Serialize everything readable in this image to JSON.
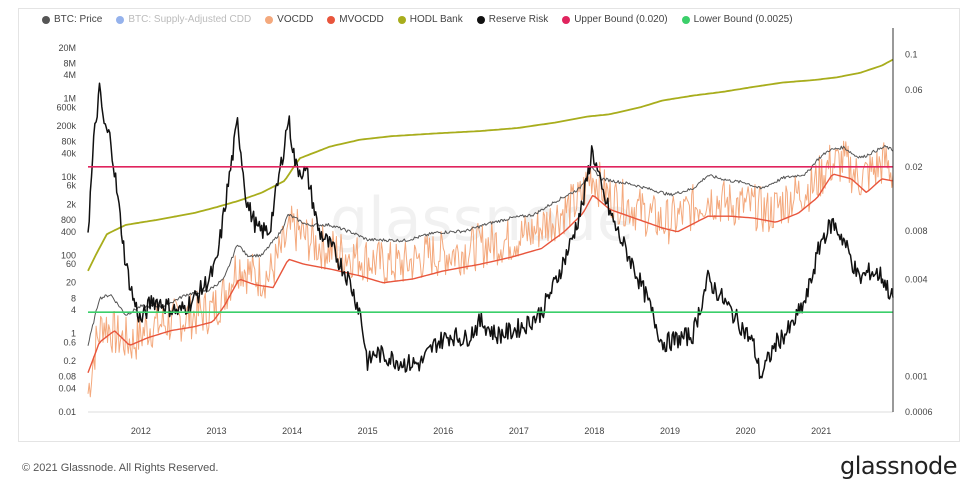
{
  "colors": {
    "price": "#555555",
    "supply_cdd": "#4f7fe0",
    "vocdd": "#f4a97d",
    "mvocdd": "#e8553c",
    "hodl": "#a8ad1c",
    "reserve": "#111111",
    "upper": "#e0245e",
    "lower": "#3bcf6a"
  },
  "legend": [
    {
      "key": "price",
      "label": "BTC: Price",
      "hidden": false
    },
    {
      "key": "supply_cdd",
      "label": "BTC: Supply-Adjusted CDD",
      "hidden": true
    },
    {
      "key": "vocdd",
      "label": "VOCDD",
      "hidden": false
    },
    {
      "key": "mvocdd",
      "label": "MVOCDD",
      "hidden": false
    },
    {
      "key": "hodl",
      "label": "HODL Bank",
      "hidden": false
    },
    {
      "key": "reserve",
      "label": "Reserve Risk",
      "hidden": false
    },
    {
      "key": "upper",
      "label": "Upper Bound (0.020)",
      "hidden": false
    },
    {
      "key": "lower",
      "label": "Lower Bound (0.0025)",
      "hidden": false
    }
  ],
  "footer": {
    "copyright": "© 2021 Glassnode. All Rights Reserved.",
    "brand": "glassnode",
    "watermark": "glassnode"
  },
  "chart_data": {
    "type": "line",
    "x_range": [
      2011.3,
      2021.95
    ],
    "x_ticks": [
      "2012",
      "2013",
      "2014",
      "2015",
      "2016",
      "2017",
      "2018",
      "2019",
      "2020",
      "2021"
    ],
    "y_left": {
      "scale": "log",
      "range": [
        0.01,
        40000000
      ],
      "ticks": [
        {
          "label": "20M",
          "value": 20000000
        },
        {
          "label": "8M",
          "value": 8000000
        },
        {
          "label": "4M",
          "value": 4000000
        },
        {
          "label": "1M",
          "value": 1000000
        },
        {
          "label": "600k",
          "value": 600000
        },
        {
          "label": "200k",
          "value": 200000
        },
        {
          "label": "80k",
          "value": 80000
        },
        {
          "label": "40k",
          "value": 40000
        },
        {
          "label": "10k",
          "value": 10000
        },
        {
          "label": "6k",
          "value": 6000
        },
        {
          "label": "2k",
          "value": 2000
        },
        {
          "label": "800",
          "value": 800
        },
        {
          "label": "400",
          "value": 400
        },
        {
          "label": "100",
          "value": 100
        },
        {
          "label": "60",
          "value": 60
        },
        {
          "label": "20",
          "value": 20
        },
        {
          "label": "8",
          "value": 8
        },
        {
          "label": "4",
          "value": 4
        },
        {
          "label": "1",
          "value": 1
        },
        {
          "label": "0.6",
          "value": 0.6
        },
        {
          "label": "0.2",
          "value": 0.2
        },
        {
          "label": "0.08",
          "value": 0.08
        },
        {
          "label": "0.04",
          "value": 0.04
        },
        {
          "label": "0.01",
          "value": 0.01
        }
      ]
    },
    "y_right": {
      "scale": "log",
      "range": [
        0.0006,
        0.13
      ],
      "ticks": [
        {
          "label": "0.1",
          "value": 0.1
        },
        {
          "label": "0.06",
          "value": 0.06
        },
        {
          "label": "0.02",
          "value": 0.02
        },
        {
          "label": "0.008",
          "value": 0.008
        },
        {
          "label": "0.004",
          "value": 0.004
        },
        {
          "label": "0.001",
          "value": 0.001
        },
        {
          "label": "0.0006",
          "value": 0.0006
        }
      ]
    },
    "bounds": [
      {
        "name": "Upper Bound (0.020)",
        "value": 0.02,
        "color_key": "upper"
      },
      {
        "name": "Lower Bound (0.0025)",
        "value": 0.0025,
        "color_key": "lower"
      }
    ],
    "series": [
      {
        "name": "BTC: Price",
        "key": "price",
        "axis": "left",
        "points": [
          [
            2011.3,
            0.5
          ],
          [
            2011.45,
            8
          ],
          [
            2011.6,
            10
          ],
          [
            2011.8,
            3
          ],
          [
            2012.0,
            5
          ],
          [
            2012.3,
            5
          ],
          [
            2012.6,
            10
          ],
          [
            2012.9,
            13
          ],
          [
            2013.1,
            25
          ],
          [
            2013.28,
            200
          ],
          [
            2013.4,
            100
          ],
          [
            2013.6,
            100
          ],
          [
            2013.85,
            400
          ],
          [
            2013.95,
            1100
          ],
          [
            2014.2,
            600
          ],
          [
            2014.5,
            600
          ],
          [
            2014.8,
            380
          ],
          [
            2015.0,
            250
          ],
          [
            2015.5,
            240
          ],
          [
            2015.9,
            380
          ],
          [
            2016.3,
            420
          ],
          [
            2016.6,
            650
          ],
          [
            2016.9,
            900
          ],
          [
            2017.2,
            1100
          ],
          [
            2017.5,
            2500
          ],
          [
            2017.8,
            5000
          ],
          [
            2017.96,
            17000
          ],
          [
            2018.1,
            9000
          ],
          [
            2018.5,
            6500
          ],
          [
            2018.9,
            4000
          ],
          [
            2019.0,
            3500
          ],
          [
            2019.3,
            5000
          ],
          [
            2019.5,
            11000
          ],
          [
            2019.8,
            8000
          ],
          [
            2020.0,
            7200
          ],
          [
            2020.2,
            5000
          ],
          [
            2020.5,
            9500
          ],
          [
            2020.8,
            12000
          ],
          [
            2020.95,
            28000
          ],
          [
            2021.1,
            48000
          ],
          [
            2021.3,
            58000
          ],
          [
            2021.45,
            35000
          ],
          [
            2021.55,
            32000
          ],
          [
            2021.7,
            45000
          ],
          [
            2021.85,
            60000
          ],
          [
            2021.95,
            48000
          ]
        ]
      },
      {
        "name": "VOCDD",
        "key": "vocdd",
        "axis": "left",
        "points": [
          [
            2011.3,
            0.03
          ],
          [
            2011.4,
            0.5
          ],
          [
            2011.5,
            2
          ],
          [
            2011.7,
            0.8
          ],
          [
            2011.9,
            0.6
          ],
          [
            2012.1,
            1.5
          ],
          [
            2012.4,
            2
          ],
          [
            2012.7,
            3
          ],
          [
            2012.95,
            4
          ],
          [
            2013.1,
            10
          ],
          [
            2013.28,
            60
          ],
          [
            2013.5,
            30
          ],
          [
            2013.7,
            30
          ],
          [
            2013.9,
            200
          ],
          [
            2014.0,
            500
          ],
          [
            2014.3,
            200
          ],
          [
            2014.6,
            120
          ],
          [
            2014.9,
            90
          ],
          [
            2015.2,
            60
          ],
          [
            2015.5,
            60
          ],
          [
            2015.8,
            100
          ],
          [
            2016.2,
            120
          ],
          [
            2016.6,
            200
          ],
          [
            2016.9,
            250
          ],
          [
            2017.2,
            400
          ],
          [
            2017.5,
            1000
          ],
          [
            2017.8,
            2500
          ],
          [
            2017.96,
            12000
          ],
          [
            2018.2,
            3000
          ],
          [
            2018.5,
            1800
          ],
          [
            2018.9,
            700
          ],
          [
            2019.1,
            900
          ],
          [
            2019.5,
            3000
          ],
          [
            2019.8,
            2000
          ],
          [
            2020.1,
            1800
          ],
          [
            2020.3,
            1200
          ],
          [
            2020.6,
            3000
          ],
          [
            2020.9,
            6000
          ],
          [
            2021.1,
            20000
          ],
          [
            2021.3,
            25000
          ],
          [
            2021.5,
            9000
          ],
          [
            2021.7,
            15000
          ],
          [
            2021.85,
            25000
          ],
          [
            2021.95,
            12000
          ]
        ]
      },
      {
        "name": "MVOCDD",
        "key": "mvocdd",
        "axis": "left",
        "points": [
          [
            2011.3,
            0.1
          ],
          [
            2011.45,
            0.6
          ],
          [
            2011.65,
            1.2
          ],
          [
            2011.85,
            0.5
          ],
          [
            2012.1,
            0.8
          ],
          [
            2012.4,
            1.2
          ],
          [
            2012.7,
            1.5
          ],
          [
            2012.95,
            2
          ],
          [
            2013.1,
            5
          ],
          [
            2013.3,
            25
          ],
          [
            2013.5,
            18
          ],
          [
            2013.75,
            15
          ],
          [
            2013.95,
            80
          ],
          [
            2014.15,
            60
          ],
          [
            2014.5,
            45
          ],
          [
            2014.9,
            30
          ],
          [
            2015.2,
            20
          ],
          [
            2015.6,
            25
          ],
          [
            2016.0,
            40
          ],
          [
            2016.5,
            60
          ],
          [
            2016.9,
            90
          ],
          [
            2017.3,
            150
          ],
          [
            2017.6,
            400
          ],
          [
            2017.85,
            1200
          ],
          [
            2017.98,
            3500
          ],
          [
            2018.2,
            1500
          ],
          [
            2018.6,
            800
          ],
          [
            2018.9,
            500
          ],
          [
            2019.1,
            400
          ],
          [
            2019.5,
            1000
          ],
          [
            2019.8,
            1000
          ],
          [
            2020.1,
            900
          ],
          [
            2020.4,
            700
          ],
          [
            2020.7,
            1200
          ],
          [
            2020.95,
            3000
          ],
          [
            2021.15,
            12000
          ],
          [
            2021.4,
            9000
          ],
          [
            2021.6,
            4000
          ],
          [
            2021.8,
            9000
          ],
          [
            2021.95,
            8000
          ]
        ]
      },
      {
        "name": "HODL Bank",
        "key": "hodl",
        "axis": "left",
        "points": [
          [
            2011.3,
            40
          ],
          [
            2011.4,
            100
          ],
          [
            2011.55,
            350
          ],
          [
            2011.8,
            600
          ],
          [
            2012.2,
            800
          ],
          [
            2012.7,
            1200
          ],
          [
            2013.0,
            1700
          ],
          [
            2013.3,
            2500
          ],
          [
            2013.6,
            4000
          ],
          [
            2013.9,
            8000
          ],
          [
            2014.1,
            30000
          ],
          [
            2014.5,
            60000
          ],
          [
            2014.9,
            90000
          ],
          [
            2015.3,
            110000
          ],
          [
            2015.9,
            130000
          ],
          [
            2016.5,
            150000
          ],
          [
            2017.0,
            180000
          ],
          [
            2017.5,
            250000
          ],
          [
            2017.9,
            350000
          ],
          [
            2018.2,
            400000
          ],
          [
            2018.6,
            600000
          ],
          [
            2018.9,
            900000
          ],
          [
            2019.3,
            1200000
          ],
          [
            2019.7,
            1500000
          ],
          [
            2020.1,
            2000000
          ],
          [
            2020.5,
            2600000
          ],
          [
            2020.9,
            3000000
          ],
          [
            2021.2,
            3500000
          ],
          [
            2021.5,
            4500000
          ],
          [
            2021.8,
            7000000
          ],
          [
            2021.95,
            10000000
          ]
        ]
      },
      {
        "name": "Reserve Risk",
        "key": "reserve",
        "axis": "right",
        "points": [
          [
            2011.3,
            0.008
          ],
          [
            2011.38,
            0.03
          ],
          [
            2011.45,
            0.06
          ],
          [
            2011.52,
            0.035
          ],
          [
            2011.6,
            0.03
          ],
          [
            2011.7,
            0.012
          ],
          [
            2011.8,
            0.005
          ],
          [
            2011.9,
            0.003
          ],
          [
            2012.0,
            0.0022
          ],
          [
            2012.15,
            0.003
          ],
          [
            2012.3,
            0.0028
          ],
          [
            2012.5,
            0.0025
          ],
          [
            2012.7,
            0.003
          ],
          [
            2012.9,
            0.004
          ],
          [
            2013.0,
            0.005
          ],
          [
            2013.15,
            0.015
          ],
          [
            2013.28,
            0.038
          ],
          [
            2013.4,
            0.012
          ],
          [
            2013.55,
            0.008
          ],
          [
            2013.7,
            0.008
          ],
          [
            2013.85,
            0.02
          ],
          [
            2013.95,
            0.04
          ],
          [
            2014.05,
            0.02
          ],
          [
            2014.2,
            0.018
          ],
          [
            2014.35,
            0.008
          ],
          [
            2014.55,
            0.006
          ],
          [
            2014.75,
            0.004
          ],
          [
            2014.9,
            0.0025
          ],
          [
            2015.0,
            0.0012
          ],
          [
            2015.1,
            0.0014
          ],
          [
            2015.3,
            0.0013
          ],
          [
            2015.5,
            0.0012
          ],
          [
            2015.7,
            0.0012
          ],
          [
            2015.9,
            0.0016
          ],
          [
            2016.1,
            0.0018
          ],
          [
            2016.3,
            0.0017
          ],
          [
            2016.5,
            0.0022
          ],
          [
            2016.7,
            0.0018
          ],
          [
            2016.9,
            0.0019
          ],
          [
            2017.1,
            0.0021
          ],
          [
            2017.3,
            0.0025
          ],
          [
            2017.5,
            0.004
          ],
          [
            2017.7,
            0.007
          ],
          [
            2017.85,
            0.012
          ],
          [
            2017.97,
            0.026
          ],
          [
            2018.1,
            0.014
          ],
          [
            2018.3,
            0.008
          ],
          [
            2018.5,
            0.005
          ],
          [
            2018.7,
            0.003
          ],
          [
            2018.9,
            0.0016
          ],
          [
            2019.1,
            0.0017
          ],
          [
            2019.3,
            0.0018
          ],
          [
            2019.5,
            0.004
          ],
          [
            2019.7,
            0.003
          ],
          [
            2019.9,
            0.0022
          ],
          [
            2020.1,
            0.0016
          ],
          [
            2020.2,
            0.001
          ],
          [
            2020.4,
            0.0016
          ],
          [
            2020.6,
            0.002
          ],
          [
            2020.8,
            0.003
          ],
          [
            2021.0,
            0.007
          ],
          [
            2021.15,
            0.009
          ],
          [
            2021.3,
            0.007
          ],
          [
            2021.5,
            0.004
          ],
          [
            2021.65,
            0.0045
          ],
          [
            2021.8,
            0.0042
          ],
          [
            2021.95,
            0.003
          ]
        ]
      }
    ]
  }
}
